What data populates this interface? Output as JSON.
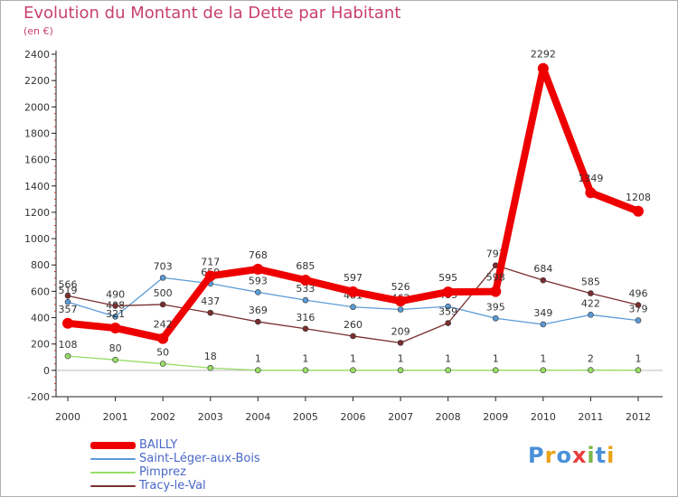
{
  "title": "Evolution du Montant de la Dette par Habitant",
  "subtitle": "(en €)",
  "chart_data": {
    "type": "line",
    "x": [
      "2000",
      "2001",
      "2002",
      "2003",
      "2004",
      "2005",
      "2006",
      "2007",
      "2008",
      "2009",
      "2010",
      "2011",
      "2012"
    ],
    "ylim": [
      -200,
      2400
    ],
    "yticks": [
      -200,
      0,
      200,
      400,
      600,
      800,
      1000,
      1200,
      1400,
      1600,
      1800,
      2000,
      2200,
      2400
    ],
    "ytick_labels": [
      "-200",
      "0",
      "200",
      "400",
      "600",
      "800",
      "1000",
      "1200",
      "1400",
      "1600",
      "1800",
      "2000",
      "2200",
      "2400"
    ],
    "grid": false,
    "legend_position": "bottom-left",
    "series": [
      {
        "name": "Saint-Léger-aux-Bois",
        "color": "#5b9bd5",
        "values": [
          519,
          408,
          703,
          659,
          593,
          533,
          481,
          462,
          485,
          395,
          349,
          422,
          379
        ],
        "labels": [
          "519",
          "408",
          "703",
          "659",
          "593",
          "533",
          "481",
          "462",
          "485",
          "395",
          "349",
          "422",
          "379"
        ]
      },
      {
        "name": "Pimprez",
        "color": "#99dd66",
        "values": [
          108,
          80,
          50,
          18,
          1,
          1,
          1,
          1,
          1,
          1,
          1,
          2,
          1
        ],
        "labels": [
          "108",
          "80",
          "50",
          "18",
          "1",
          "1",
          "1",
          "1",
          "1",
          "1",
          "1",
          "2",
          "1"
        ]
      },
      {
        "name": "Tracy-le-Val",
        "color": "#7a2e2e",
        "values": [
          566,
          490,
          500,
          437,
          369,
          316,
          260,
          209,
          359,
          797,
          684,
          585,
          496
        ],
        "labels": [
          "566",
          "490",
          "500",
          "437",
          "369",
          "316",
          "260",
          "209",
          "359",
          "797",
          "684",
          "585",
          "496"
        ]
      },
      {
        "name": "BAILLY",
        "color": "#ee0000",
        "values": [
          357,
          321,
          242,
          717,
          768,
          685,
          597,
          526,
          595,
          598,
          2292,
          1349,
          1208
        ],
        "labels": [
          "357",
          "321",
          "242",
          "717",
          "768",
          "685",
          "597",
          "526",
          "595",
          "598",
          "2292",
          "1349",
          "1208"
        ]
      }
    ]
  },
  "legend": [
    {
      "name": "BAILLY",
      "color": "#ee0000"
    },
    {
      "name": "Saint-Léger-aux-Bois",
      "color": "#5b9bd5"
    },
    {
      "name": "Pimprez",
      "color": "#99dd66"
    },
    {
      "name": "Tracy-le-Val",
      "color": "#7a2e2e"
    }
  ],
  "logo": {
    "text": "Proxiti",
    "letters": [
      "P",
      "r",
      "o",
      "x",
      "i",
      "t",
      "i"
    ],
    "colors": [
      "#4a90d9",
      "#e8a317",
      "#4a90d9",
      "#e83e3e",
      "#7ab648",
      "#4a90d9",
      "#e8a317"
    ]
  }
}
